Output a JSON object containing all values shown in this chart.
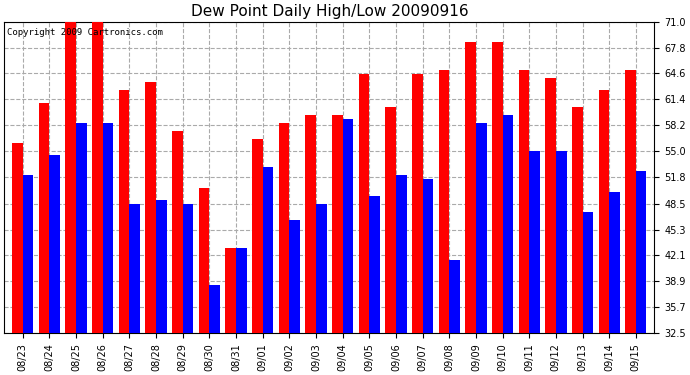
{
  "title": "Dew Point Daily High/Low 20090916",
  "copyright": "Copyright 2009 Cartronics.com",
  "categories": [
    "08/23",
    "08/24",
    "08/25",
    "08/26",
    "08/27",
    "08/28",
    "08/29",
    "08/30",
    "08/31",
    "09/01",
    "09/02",
    "09/03",
    "09/04",
    "09/05",
    "09/06",
    "09/07",
    "09/08",
    "09/09",
    "09/10",
    "09/11",
    "09/12",
    "09/13",
    "09/14",
    "09/15"
  ],
  "highs": [
    56.0,
    61.0,
    71.0,
    71.0,
    62.5,
    63.5,
    57.5,
    50.5,
    43.0,
    56.5,
    58.5,
    59.5,
    59.5,
    64.5,
    60.5,
    64.5,
    65.0,
    68.5,
    68.5,
    65.0,
    64.0,
    60.5,
    62.5,
    65.0
  ],
  "lows": [
    52.0,
    54.5,
    58.5,
    58.5,
    48.5,
    49.0,
    48.5,
    38.5,
    43.0,
    53.0,
    46.5,
    48.5,
    59.0,
    49.5,
    52.0,
    51.5,
    41.5,
    58.5,
    59.5,
    55.0,
    55.0,
    47.5,
    50.0,
    52.5
  ],
  "high_color": "#ff0000",
  "low_color": "#0000ff",
  "bar_width": 0.4,
  "ylim_min": 32.5,
  "ylim_max": 71.0,
  "yticks": [
    32.5,
    35.7,
    38.9,
    42.1,
    45.3,
    48.5,
    51.8,
    55.0,
    58.2,
    61.4,
    64.6,
    67.8,
    71.0
  ],
  "grid_color": "#aaaaaa",
  "background_color": "#ffffff",
  "title_fontsize": 11,
  "tick_fontsize": 7,
  "copyright_fontsize": 6.5
}
